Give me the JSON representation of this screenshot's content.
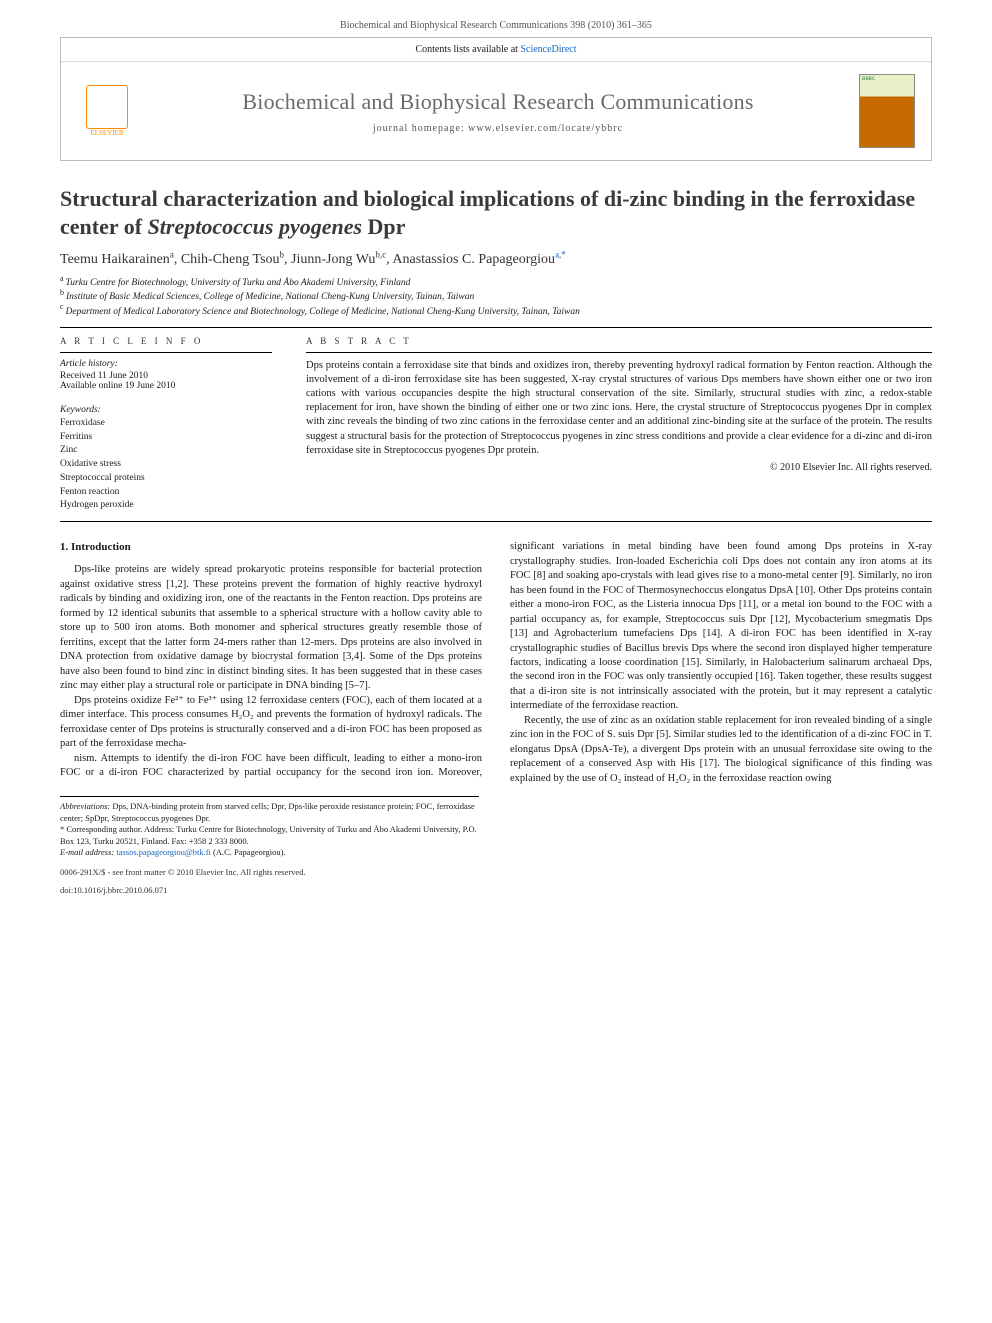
{
  "citation": "Biochemical and Biophysical Research Communications 398 (2010) 361–365",
  "header": {
    "contents_prefix": "Contents lists available at ",
    "contents_link": "ScienceDirect",
    "journal_title": "Biochemical and Biophysical Research Communications",
    "homepage_label": "journal homepage: www.elsevier.com/locate/ybbrc",
    "publisher_label": "ELSEVIER",
    "cover_abbr": "BBRC"
  },
  "article": {
    "title_prefix": "Structural characterization and biological implications of di-zinc binding in the ferroxidase center of ",
    "title_italic": "Streptococcus pyogenes",
    "title_suffix": " Dpr",
    "authors_html": "Teemu Haikarainen",
    "authors": [
      {
        "name": "Teemu Haikarainen",
        "aff": "a"
      },
      {
        "name": "Chih-Cheng Tsou",
        "aff": "b"
      },
      {
        "name": "Jiunn-Jong Wu",
        "aff": "b,c"
      },
      {
        "name": "Anastassios C. Papageorgiou",
        "aff": "a,*"
      }
    ],
    "affiliations": [
      {
        "sup": "a",
        "text": "Turku Centre for Biotechnology, University of Turku and Åbo Akademi University, Finland"
      },
      {
        "sup": "b",
        "text": "Institute of Basic Medical Sciences, College of Medicine, National Cheng-Kung University, Tainan, Taiwan"
      },
      {
        "sup": "c",
        "text": "Department of Medical Laboratory Science and Biotechnology, College of Medicine, National Cheng-Kung University, Tainan, Taiwan"
      }
    ]
  },
  "info": {
    "heading": "A R T I C L E   I N F O",
    "history_label": "Article history:",
    "received": "Received 11 June 2010",
    "available": "Available online 19 June 2010",
    "keywords_label": "Keywords:",
    "keywords": [
      "Ferroxidase",
      "Ferritins",
      "Zinc",
      "Oxidative stress",
      "Streptococcal proteins",
      "Fenton reaction",
      "Hydrogen peroxide"
    ]
  },
  "abstract": {
    "heading": "A B S T R A C T",
    "text": "Dps proteins contain a ferroxidase site that binds and oxidizes iron, thereby preventing hydroxyl radical formation by Fenton reaction. Although the involvement of a di-iron ferroxidase site has been suggested, X-ray crystal structures of various Dps members have shown either one or two iron cations with various occupancies despite the high structural conservation of the site. Similarly, structural studies with zinc, a redox-stable replacement for iron, have shown the binding of either one or two zinc ions. Here, the crystal structure of Streptococcus pyogenes Dpr in complex with zinc reveals the binding of two zinc cations in the ferroxidase center and an additional zinc-binding site at the surface of the protein. The results suggest a structural basis for the protection of Streptococcus pyogenes in zinc stress conditions and provide a clear evidence for a di-zinc and di-iron ferroxidase site in Streptococcus pyogenes Dpr protein.",
    "copyright": "© 2010 Elsevier Inc. All rights reserved."
  },
  "body": {
    "section_heading": "1. Introduction",
    "p1": "Dps-like proteins are widely spread prokaryotic proteins responsible for bacterial protection against oxidative stress [1,2]. These proteins prevent the formation of highly reactive hydroxyl radicals by binding and oxidizing iron, one of the reactants in the Fenton reaction. Dps proteins are formed by 12 identical subunits that assemble to a spherical structure with a hollow cavity able to store up to 500 iron atoms. Both monomer and spherical structures greatly resemble those of ferritins, except that the latter form 24-mers rather than 12-mers. Dps proteins are also involved in DNA protection from oxidative damage by biocrystal formation [3,4]. Some of the Dps proteins have also been found to bind zinc in distinct binding sites. It has been suggested that in these cases zinc may either play a structural role or participate in DNA binding [5–7].",
    "p2": "Dps proteins oxidize Fe²⁺ to Fe³⁺ using 12 ferroxidase centers (FOC), each of them located at a dimer interface. This process consumes H₂O₂ and prevents the formation of hydroxyl radicals. The ferroxidase center of Dps proteins is structurally conserved and a di-iron FOC has been proposed as part of the ferroxidase mecha-",
    "p3": "nism. Attempts to identify the di-iron FOC have been difficult, leading to either a mono-iron FOC or a di-iron FOC characterized by partial occupancy for the second iron ion. Moreover, significant variations in metal binding have been found among Dps proteins in X-ray crystallography studies. Iron-loaded Escherichia coli Dps does not contain any iron atoms at its FOC [8] and soaking apo-crystals with lead gives rise to a mono-metal center [9]. Similarly, no iron has been found in the FOC of Thermosynechoccus elongatus DpsA [10]. Other Dps proteins contain either a mono-iron FOC, as the Listeria innocua Dps [11], or a metal ion bound to the FOC with a partial occupancy as, for example, Streptococcus suis Dpr [12], Mycobacterium smegmatis Dps [13] and Agrobacterium tumefaciens Dps [14]. A di-iron FOC has been identified in X-ray crystallographic studies of Bacillus brevis Dps where the second iron displayed higher temperature factors, indicating a loose coordination [15]. Similarly, in Halobacterium salinarum archaeal Dps, the second iron in the FOC was only transiently occupied [16]. Taken together, these results suggest that a di-iron site is not intrinsically associated with the protein, but it may represent a catalytic intermediate of the ferroxidase reaction.",
    "p4": "Recently, the use of zinc as an oxidation stable replacement for iron revealed binding of a single zinc ion in the FOC of S. suis Dpr [5]. Similar studies led to the identification of a di-zinc FOC in T. elongatus DpsA (DpsA-Te), a divergent Dps protein with an unusual ferroxidase site owing to the replacement of a conserved Asp with His [17]. The biological significance of this finding was explained by the use of O₂ instead of H₂O₂ in the ferroxidase reaction owing"
  },
  "footnotes": {
    "abbr_label": "Abbreviations:",
    "abbr_text": " Dps, DNA-binding protein from starved cells; Dpr, Dps-like peroxide resistance protein; FOC, ferroxidase center; SpDpr, Streptococcus pyogenes Dpr.",
    "corr_label": "* Corresponding author.",
    "corr_text": " Address: Turku Centre for Biotechnology, University of Turku and Åbo Akademi University, P.O. Box 123, Turku 20521, Finland. Fax: +358 2 333 8000.",
    "email_label": "E-mail address:",
    "email": "tassos.papageorgiou@btk.fi",
    "email_who": " (A.C. Papageorgiou)."
  },
  "bottom": {
    "line1": "0006-291X/$ - see front matter © 2010 Elsevier Inc. All rights reserved.",
    "line2": "doi:10.1016/j.bbrc.2010.06.071"
  },
  "colors": {
    "link": "#1566c0",
    "elsevier_orange": "#ff8a00",
    "rule": "#000000",
    "text": "#1a1a1a"
  }
}
